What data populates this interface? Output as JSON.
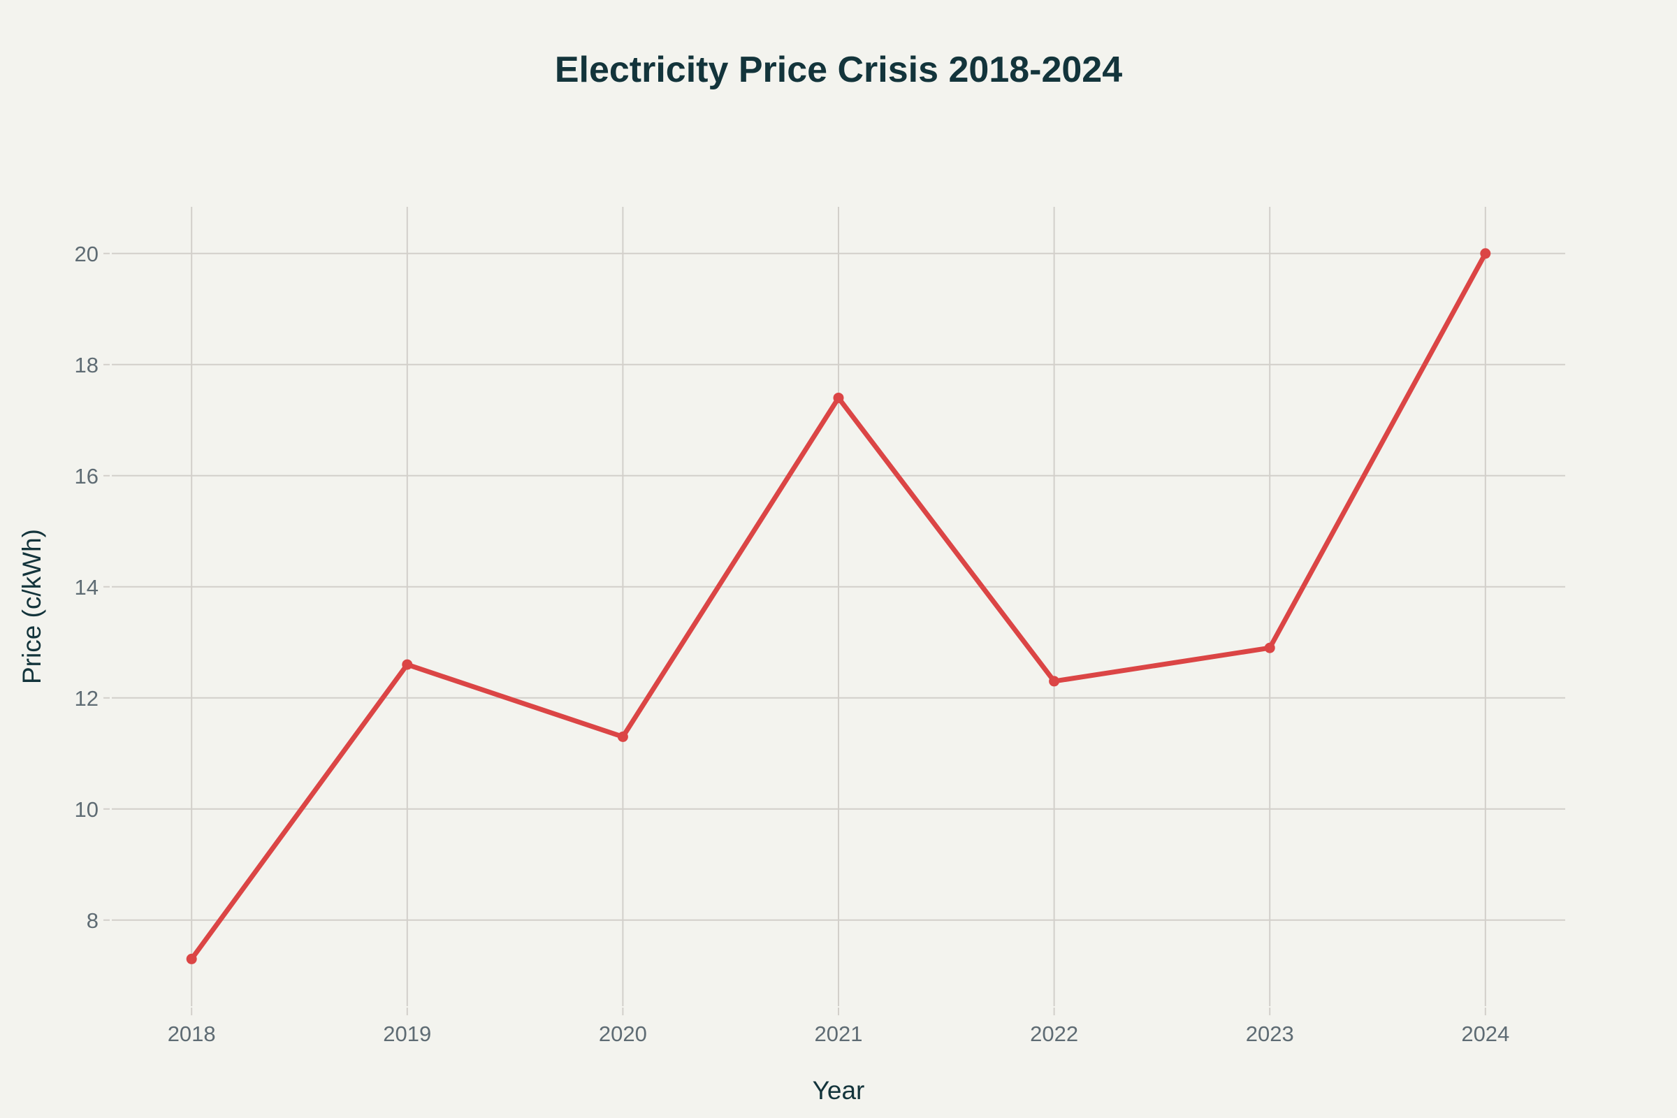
{
  "chart_data": {
    "type": "line",
    "title": "Electricity Price Crisis 2018-2024",
    "xlabel": "Year",
    "ylabel": "Price (c/kWh)",
    "x": [
      2018,
      2019,
      2020,
      2021,
      2022,
      2023,
      2024
    ],
    "x_tick_labels": [
      "2018",
      "2019",
      "2020",
      "2021",
      "2022",
      "2023",
      "2024"
    ],
    "y_ticks": [
      8,
      10,
      12,
      14,
      16,
      18,
      20
    ],
    "y_tick_labels": [
      "8",
      "10",
      "12",
      "14",
      "16",
      "18",
      "20"
    ],
    "xlim": [
      2017.63,
      2024.37
    ],
    "ylim": [
      6.45,
      20.84
    ],
    "grid": true,
    "legend": "none",
    "series": [
      {
        "name": "Price",
        "values": [
          7.3,
          12.6,
          11.3,
          17.4,
          12.3,
          12.9,
          20.0
        ],
        "color": "#db4545",
        "markers": true
      }
    ]
  },
  "colors": {
    "background": "#f3f3ee",
    "title": "#13343b",
    "tick_text": "#5e6b73",
    "grid": "#d2cfca"
  }
}
